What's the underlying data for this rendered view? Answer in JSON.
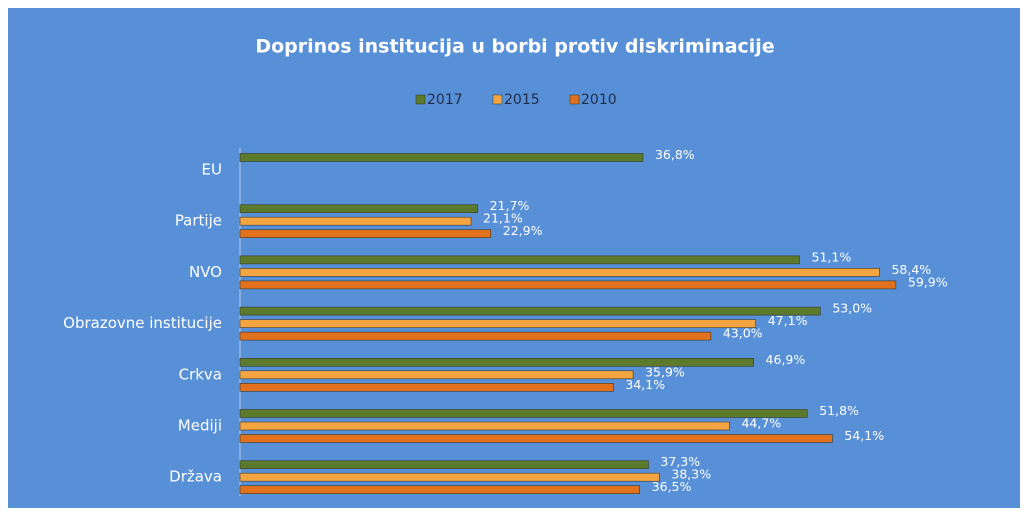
{
  "chart_data": {
    "type": "hbar",
    "title": "Doprinos institucija u borbi protiv diskriminacije",
    "categories": [
      "EU",
      "Partije",
      "NVO",
      "Obrazovne institucije",
      "Crkva",
      "Mediji",
      "Država"
    ],
    "series": [
      {
        "name": "2017",
        "color": "#5b7a2c",
        "values": [
          36.8,
          21.7,
          51.1,
          53.0,
          46.9,
          51.8,
          37.3
        ],
        "value_labels": [
          "36,8%",
          "21,7%",
          "51,1%",
          "53,0%",
          "46,9%",
          "51,8%",
          "37,3%"
        ]
      },
      {
        "name": "2015",
        "color": "#f5a442",
        "values": [
          null,
          21.1,
          58.4,
          47.1,
          35.9,
          44.7,
          38.3
        ],
        "value_labels": [
          null,
          "21,1%",
          "58,4%",
          "47,1%",
          "35,9%",
          "44,7%",
          "38,3%"
        ]
      },
      {
        "name": "2010",
        "color": "#e2711d",
        "values": [
          null,
          22.9,
          59.9,
          43.0,
          34.1,
          54.1,
          36.5
        ],
        "value_labels": [
          null,
          "22,9%",
          "59,9%",
          "43,0%",
          "34,1%",
          "54,1%",
          "36,5%"
        ]
      }
    ],
    "legend": "top"
  }
}
